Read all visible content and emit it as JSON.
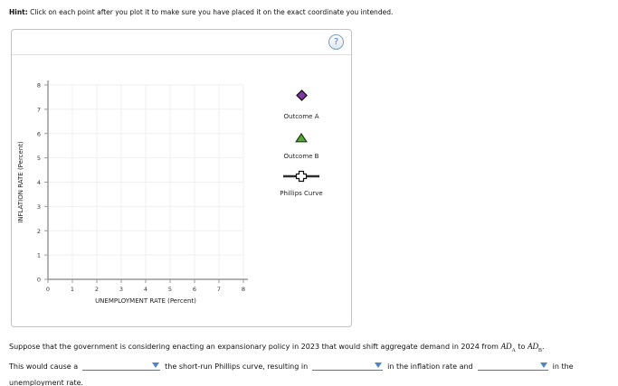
{
  "hint": {
    "label": "Hint:",
    "text": " Click on each point after you plot it to make sure you have placed it on the exact coordinate you intended."
  },
  "panel": {
    "help_icon": "?"
  },
  "chart_data": {
    "type": "scatter",
    "title": "",
    "xlabel": "UNEMPLOYMENT RATE (Percent)",
    "ylabel": "INFLATION RATE (Percent)",
    "xlim": [
      0,
      8
    ],
    "ylim": [
      0,
      8
    ],
    "xticks": [
      0,
      1,
      2,
      3,
      4,
      5,
      6,
      7,
      8
    ],
    "yticks": [
      0,
      1,
      2,
      3,
      4,
      5,
      6,
      7,
      8
    ],
    "grid": true,
    "grid_color": "#efefef",
    "axis_color": "#999999",
    "legend_position": "right-of-plot",
    "series": [
      {
        "name": "Outcome A",
        "marker": "diamond",
        "color": "#7d3aa0",
        "points": []
      },
      {
        "name": "Outcome B",
        "marker": "triangle",
        "color": "#55ab35",
        "points": []
      },
      {
        "name": "Phillips Curve",
        "marker": "line-with-cross",
        "color": "#2e2e2e",
        "points": []
      }
    ]
  },
  "question": {
    "line1": {
      "part1": "Suppose that the government is considering enacting an expansionary policy in 2023 that would shift aggregate demand in 2024 from ",
      "ad": "AD",
      "sub_a": "A",
      "part2": " to ",
      "sub_b": "B",
      "part3": "."
    },
    "line2": {
      "part1": "This would cause a",
      "part2": "the short-run Phillips curve, resulting in",
      "part3": "in the inflation rate and",
      "part4": "in the"
    },
    "line3": "unemployment rate.",
    "dropdowns": [
      {
        "name": "shift-direction",
        "value": ""
      },
      {
        "name": "inflation-change",
        "value": ""
      },
      {
        "name": "unemployment-change",
        "value": ""
      }
    ],
    "accent_color": "#3d7bc0"
  }
}
